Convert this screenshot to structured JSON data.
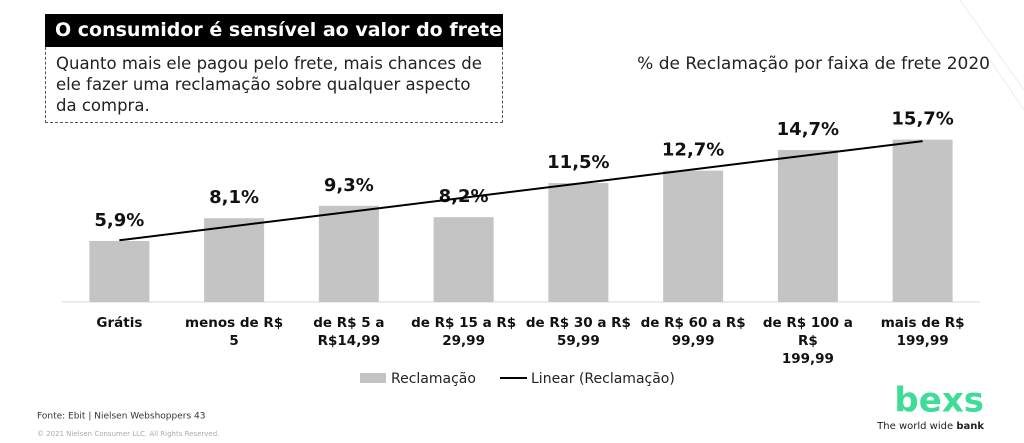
{
  "slide": {
    "title": "O consumidor é sensível ao valor do frete",
    "subtitle": "Quanto mais ele pagou pelo frete, mais chances de ele fazer uma reclamação sobre qualquer aspecto da compra.",
    "source": "Fonte: Ebit | Nielsen Webshoppers  43",
    "copyright": "© 2021 Nielsen Consumer LLC. All Rights Reserved.",
    "logo": "bexs",
    "tagline": "The world wide ",
    "tagline_bold": "bank"
  },
  "chart_data": {
    "type": "bar",
    "title": "% de Reclamação por faixa de frete 2020",
    "categories": [
      "Grátis",
      "menos de R$ 5",
      "de R$ 5 a\nR$14,99",
      "de R$ 15 a R$\n29,99",
      "de R$ 30 a R$\n59,99",
      "de R$ 60 a R$\n99,99",
      "de R$ 100 a R$\n199,99",
      "mais de R$\n199,99"
    ],
    "series": [
      {
        "name": "Reclamação",
        "color": "#c4c4c4",
        "values": [
          5.9,
          8.1,
          9.3,
          8.2,
          11.5,
          12.7,
          14.7,
          15.7
        ],
        "value_labels": [
          "5,9%",
          "8,1%",
          "9,3%",
          "8,2%",
          "11,5%",
          "12,7%",
          "14,7%",
          "15,7%"
        ]
      }
    ],
    "trendline": {
      "name": "Linear (Reclamação)",
      "color": "#000000"
    },
    "ylim": [
      0,
      17.5
    ]
  }
}
